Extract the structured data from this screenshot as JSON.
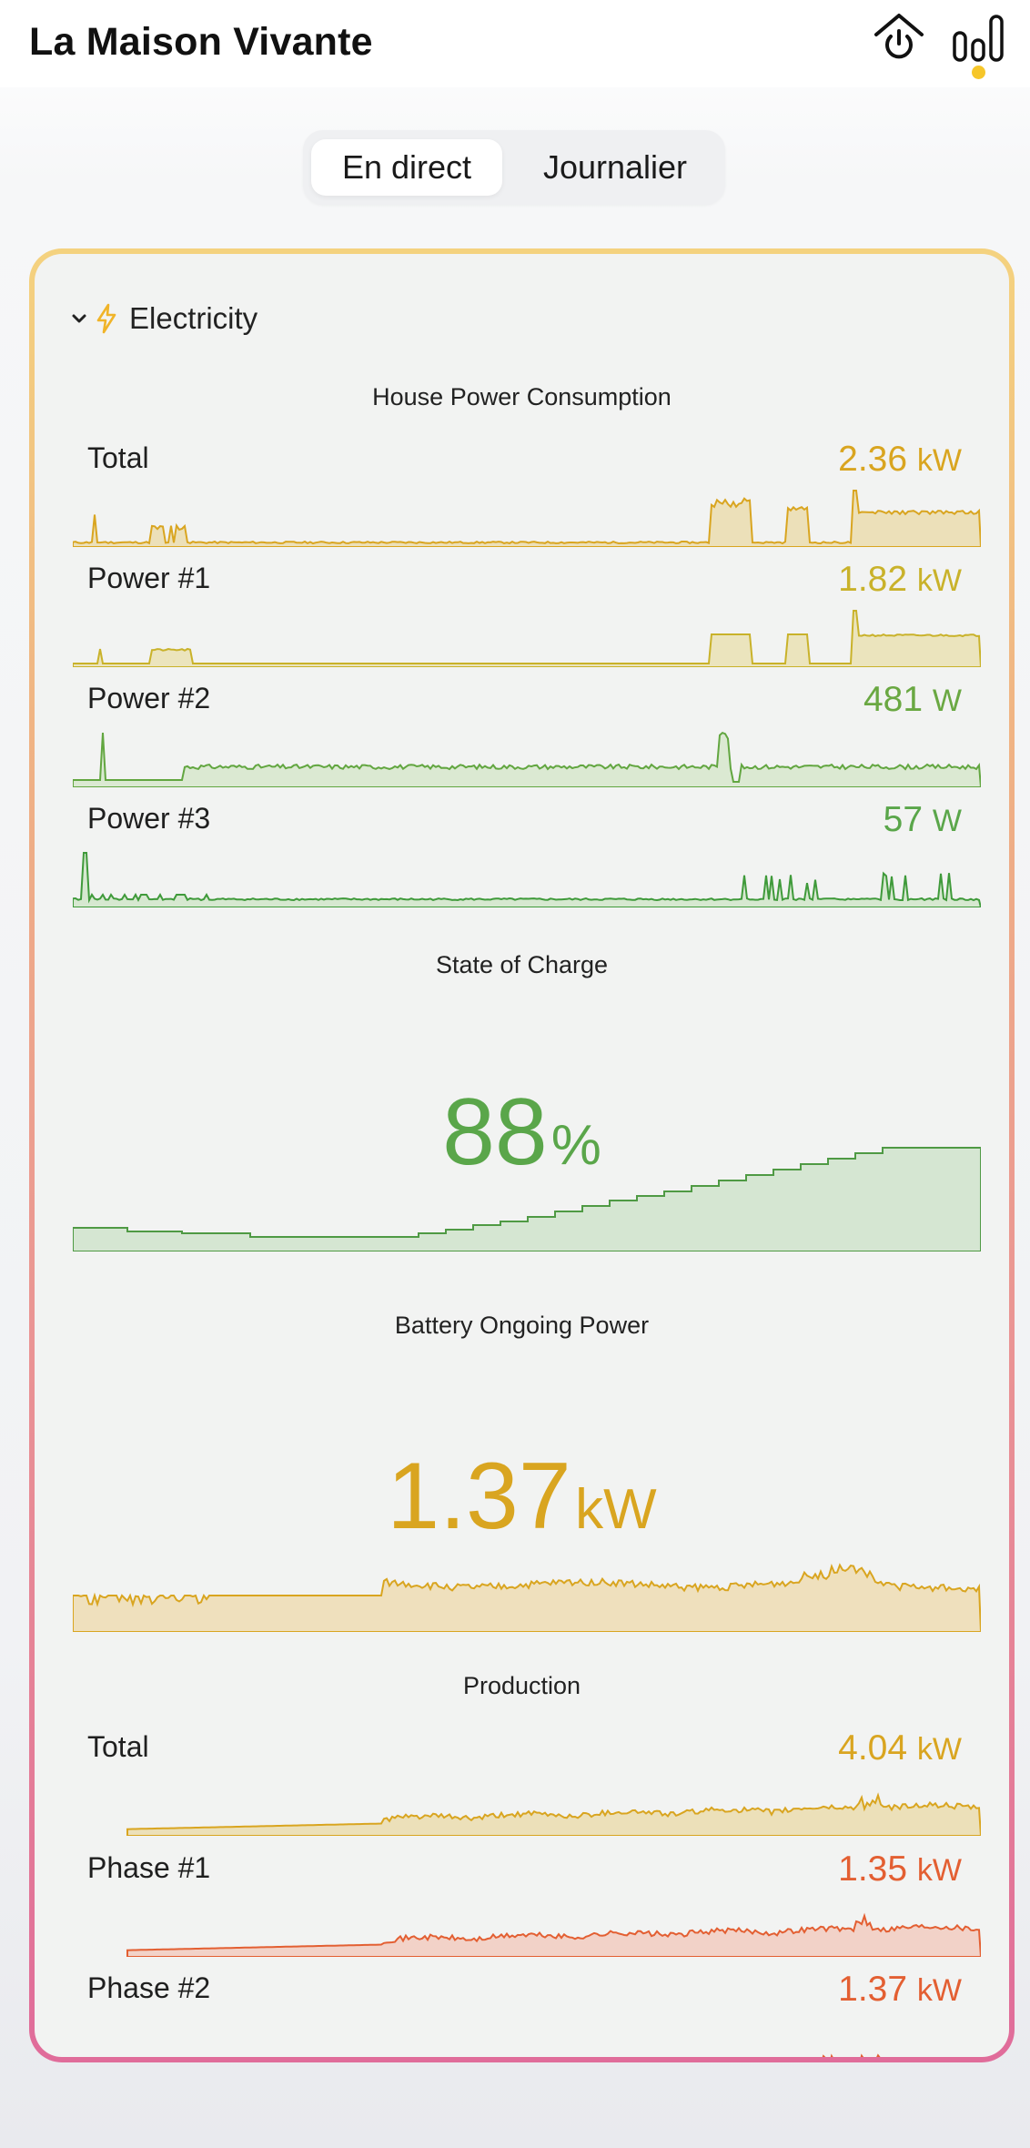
{
  "app": {
    "title": "La Maison Vivante"
  },
  "header": {
    "icons": [
      "home-power-icon",
      "stats-bars-icon"
    ],
    "notification_color": "#f6c62a"
  },
  "tabs": [
    {
      "label": "En direct",
      "active": true
    },
    {
      "label": "Journalier",
      "active": false
    }
  ],
  "section": {
    "label": "Electricity",
    "icon": "lightning-icon",
    "expanded": true
  },
  "colors": {
    "yellow": "#d9a520",
    "green": "#5aa64a",
    "orange": "#e35f32",
    "yellow_green": "#c4b62a"
  },
  "consumption": {
    "title": "House Power Consumption",
    "rows": [
      {
        "label": "Total",
        "value": "2.36",
        "unit": "kW"
      },
      {
        "label": "Power #1",
        "value": "1.82",
        "unit": "kW"
      },
      {
        "label": "Power #2",
        "value": "481",
        "unit": "W"
      },
      {
        "label": "Power #3",
        "value": "57",
        "unit": "W"
      }
    ]
  },
  "soc": {
    "title": "State of Charge",
    "value": "88",
    "unit": "%"
  },
  "battery": {
    "title": "Battery Ongoing Power",
    "value": "1.37",
    "unit": "kW"
  },
  "production": {
    "title": "Production",
    "rows": [
      {
        "label": "Total",
        "value": "4.04",
        "unit": "kW"
      },
      {
        "label": "Phase #1",
        "value": "1.35",
        "unit": "kW"
      },
      {
        "label": "Phase #2",
        "value": "1.37",
        "unit": "kW"
      }
    ]
  }
}
